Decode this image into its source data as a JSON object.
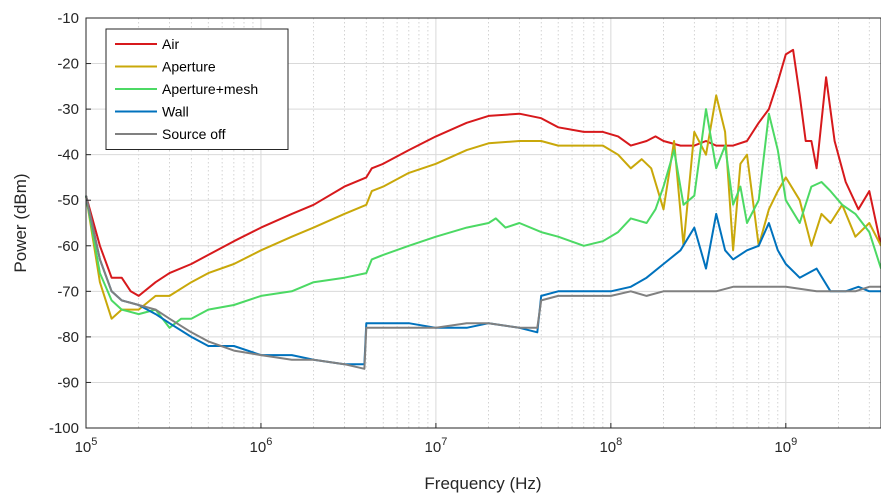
{
  "chart_data": {
    "type": "line",
    "title": "",
    "xlabel": "Frequency (Hz)",
    "ylabel": "Power (dBm)",
    "x_scale": "log",
    "xlim": [
      100000,
      3500000000
    ],
    "ylim": [
      -100,
      -10
    ],
    "grid": true,
    "legend_position": "top-left",
    "x_ticks": [
      {
        "value": 100000,
        "base": "10",
        "exp": "5"
      },
      {
        "value": 1000000,
        "base": "10",
        "exp": "6"
      },
      {
        "value": 10000000,
        "base": "10",
        "exp": "7"
      },
      {
        "value": 100000000,
        "base": "10",
        "exp": "8"
      },
      {
        "value": 1000000000,
        "base": "10",
        "exp": "9"
      }
    ],
    "y_ticks": [
      -100,
      -90,
      -80,
      -70,
      -60,
      -50,
      -40,
      -30,
      -20,
      -10
    ],
    "series": [
      {
        "name": "Air",
        "color": "#d7191c",
        "points": [
          [
            100000,
            -49
          ],
          [
            120000,
            -60
          ],
          [
            140000,
            -67
          ],
          [
            160000,
            -67
          ],
          [
            180000,
            -70
          ],
          [
            200000,
            -71
          ],
          [
            250000,
            -68
          ],
          [
            300000,
            -66
          ],
          [
            400000,
            -64
          ],
          [
            500000,
            -62
          ],
          [
            700000,
            -59
          ],
          [
            1000000,
            -56
          ],
          [
            1500000,
            -53
          ],
          [
            2000000,
            -51
          ],
          [
            3000000,
            -47
          ],
          [
            4000000,
            -45
          ],
          [
            4300000,
            -43
          ],
          [
            5000000,
            -42
          ],
          [
            7000000,
            -39
          ],
          [
            10000000,
            -36
          ],
          [
            15000000,
            -33
          ],
          [
            20000000,
            -31.5
          ],
          [
            30000000,
            -31
          ],
          [
            40000000,
            -32
          ],
          [
            50000000,
            -34
          ],
          [
            70000000,
            -35
          ],
          [
            90000000,
            -35
          ],
          [
            110000000,
            -36
          ],
          [
            130000000,
            -38
          ],
          [
            160000000,
            -37
          ],
          [
            180000000,
            -36
          ],
          [
            200000000,
            -37
          ],
          [
            250000000,
            -38
          ],
          [
            300000000,
            -38
          ],
          [
            350000000,
            -37
          ],
          [
            400000000,
            -38
          ],
          [
            500000000,
            -38
          ],
          [
            600000000,
            -37
          ],
          [
            700000000,
            -33
          ],
          [
            800000000,
            -30
          ],
          [
            900000000,
            -24
          ],
          [
            1000000000,
            -18
          ],
          [
            1100000000,
            -17
          ],
          [
            1200000000,
            -27
          ],
          [
            1300000000,
            -37
          ],
          [
            1400000000,
            -37
          ],
          [
            1500000000,
            -43
          ],
          [
            1700000000,
            -23
          ],
          [
            1900000000,
            -37
          ],
          [
            2200000000,
            -46
          ],
          [
            2600000000,
            -52
          ],
          [
            3000000000,
            -48
          ],
          [
            3500000000,
            -60
          ]
        ]
      },
      {
        "name": "Aperture",
        "color": "#c9a80a",
        "points": [
          [
            100000,
            -49
          ],
          [
            120000,
            -68
          ],
          [
            140000,
            -76
          ],
          [
            160000,
            -74
          ],
          [
            200000,
            -74
          ],
          [
            250000,
            -71
          ],
          [
            300000,
            -71
          ],
          [
            400000,
            -68
          ],
          [
            500000,
            -66
          ],
          [
            700000,
            -64
          ],
          [
            1000000,
            -61
          ],
          [
            1500000,
            -58
          ],
          [
            2000000,
            -56
          ],
          [
            3000000,
            -53
          ],
          [
            4000000,
            -51
          ],
          [
            4300000,
            -48
          ],
          [
            5000000,
            -47
          ],
          [
            7000000,
            -44
          ],
          [
            10000000,
            -42
          ],
          [
            15000000,
            -39
          ],
          [
            20000000,
            -37.5
          ],
          [
            30000000,
            -37
          ],
          [
            40000000,
            -37
          ],
          [
            50000000,
            -38
          ],
          [
            70000000,
            -38
          ],
          [
            90000000,
            -38
          ],
          [
            110000000,
            -40
          ],
          [
            130000000,
            -43
          ],
          [
            150000000,
            -41
          ],
          [
            170000000,
            -43
          ],
          [
            200000000,
            -52
          ],
          [
            230000000,
            -37
          ],
          [
            260000000,
            -60
          ],
          [
            300000000,
            -35
          ],
          [
            350000000,
            -40
          ],
          [
            400000000,
            -27
          ],
          [
            450000000,
            -35
          ],
          [
            500000000,
            -61
          ],
          [
            550000000,
            -42
          ],
          [
            600000000,
            -40
          ],
          [
            700000000,
            -60
          ],
          [
            800000000,
            -52
          ],
          [
            900000000,
            -48
          ],
          [
            1000000000,
            -45
          ],
          [
            1200000000,
            -50
          ],
          [
            1400000000,
            -60
          ],
          [
            1600000000,
            -53
          ],
          [
            1800000000,
            -55
          ],
          [
            2100000000,
            -51
          ],
          [
            2500000000,
            -58
          ],
          [
            3000000000,
            -55
          ],
          [
            3500000000,
            -60
          ]
        ]
      },
      {
        "name": "Aperture+mesh",
        "color": "#4cd964",
        "points": [
          [
            100000,
            -49
          ],
          [
            120000,
            -66
          ],
          [
            140000,
            -72
          ],
          [
            160000,
            -74
          ],
          [
            200000,
            -75
          ],
          [
            250000,
            -74
          ],
          [
            300000,
            -78
          ],
          [
            350000,
            -76
          ],
          [
            400000,
            -76
          ],
          [
            500000,
            -74
          ],
          [
            700000,
            -73
          ],
          [
            1000000,
            -71
          ],
          [
            1500000,
            -70
          ],
          [
            2000000,
            -68
          ],
          [
            3000000,
            -67
          ],
          [
            4000000,
            -66
          ],
          [
            4300000,
            -63
          ],
          [
            5000000,
            -62
          ],
          [
            7000000,
            -60
          ],
          [
            10000000,
            -58
          ],
          [
            15000000,
            -56
          ],
          [
            20000000,
            -55
          ],
          [
            22000000,
            -54
          ],
          [
            25000000,
            -56
          ],
          [
            30000000,
            -55
          ],
          [
            40000000,
            -57
          ],
          [
            50000000,
            -58
          ],
          [
            70000000,
            -60
          ],
          [
            90000000,
            -59
          ],
          [
            110000000,
            -57
          ],
          [
            130000000,
            -54
          ],
          [
            160000000,
            -55
          ],
          [
            180000000,
            -52
          ],
          [
            200000000,
            -47
          ],
          [
            230000000,
            -39
          ],
          [
            260000000,
            -51
          ],
          [
            300000000,
            -49
          ],
          [
            350000000,
            -30
          ],
          [
            400000000,
            -43
          ],
          [
            450000000,
            -38
          ],
          [
            500000000,
            -51
          ],
          [
            550000000,
            -47
          ],
          [
            600000000,
            -55
          ],
          [
            700000000,
            -50
          ],
          [
            800000000,
            -31
          ],
          [
            900000000,
            -39
          ],
          [
            1000000000,
            -50
          ],
          [
            1200000000,
            -55
          ],
          [
            1400000000,
            -47
          ],
          [
            1600000000,
            -46
          ],
          [
            1800000000,
            -48
          ],
          [
            2100000000,
            -51
          ],
          [
            2500000000,
            -53
          ],
          [
            3000000000,
            -57
          ],
          [
            3500000000,
            -65
          ]
        ]
      },
      {
        "name": "Wall",
        "color": "#0072bd",
        "points": [
          [
            100000,
            -49
          ],
          [
            120000,
            -63
          ],
          [
            140000,
            -70
          ],
          [
            160000,
            -72
          ],
          [
            200000,
            -73
          ],
          [
            250000,
            -75
          ],
          [
            300000,
            -77
          ],
          [
            400000,
            -80
          ],
          [
            500000,
            -82
          ],
          [
            700000,
            -82
          ],
          [
            1000000,
            -84
          ],
          [
            1500000,
            -84
          ],
          [
            2000000,
            -85
          ],
          [
            3000000,
            -86
          ],
          [
            3900000,
            -86
          ],
          [
            4000000,
            -77
          ],
          [
            5000000,
            -77
          ],
          [
            7000000,
            -77
          ],
          [
            10000000,
            -78
          ],
          [
            15000000,
            -78
          ],
          [
            20000000,
            -77
          ],
          [
            30000000,
            -78
          ],
          [
            38000000,
            -79
          ],
          [
            40000000,
            -71
          ],
          [
            50000000,
            -70
          ],
          [
            70000000,
            -70
          ],
          [
            100000000,
            -70
          ],
          [
            130000000,
            -69
          ],
          [
            160000000,
            -67
          ],
          [
            200000000,
            -64
          ],
          [
            250000000,
            -61
          ],
          [
            300000000,
            -56
          ],
          [
            350000000,
            -65
          ],
          [
            400000000,
            -53
          ],
          [
            450000000,
            -61
          ],
          [
            500000000,
            -63
          ],
          [
            600000000,
            -61
          ],
          [
            700000000,
            -60
          ],
          [
            800000000,
            -55
          ],
          [
            900000000,
            -61
          ],
          [
            1000000000,
            -64
          ],
          [
            1200000000,
            -67
          ],
          [
            1500000000,
            -65
          ],
          [
            1800000000,
            -70
          ],
          [
            2200000000,
            -70
          ],
          [
            2600000000,
            -69
          ],
          [
            3000000000,
            -70
          ],
          [
            3500000000,
            -70
          ]
        ]
      },
      {
        "name": "Source off",
        "color": "#808080",
        "points": [
          [
            100000,
            -49
          ],
          [
            120000,
            -63
          ],
          [
            140000,
            -70
          ],
          [
            160000,
            -72
          ],
          [
            200000,
            -73
          ],
          [
            250000,
            -74
          ],
          [
            300000,
            -76
          ],
          [
            400000,
            -79
          ],
          [
            500000,
            -81
          ],
          [
            700000,
            -83
          ],
          [
            1000000,
            -84
          ],
          [
            1500000,
            -85
          ],
          [
            2000000,
            -85
          ],
          [
            3000000,
            -86
          ],
          [
            3900000,
            -87
          ],
          [
            4000000,
            -78
          ],
          [
            5000000,
            -78
          ],
          [
            7000000,
            -78
          ],
          [
            10000000,
            -78
          ],
          [
            15000000,
            -77
          ],
          [
            20000000,
            -77
          ],
          [
            30000000,
            -78
          ],
          [
            38000000,
            -78
          ],
          [
            40000000,
            -72
          ],
          [
            50000000,
            -71
          ],
          [
            70000000,
            -71
          ],
          [
            100000000,
            -71
          ],
          [
            130000000,
            -70
          ],
          [
            160000000,
            -71
          ],
          [
            200000000,
            -70
          ],
          [
            300000000,
            -70
          ],
          [
            400000000,
            -70
          ],
          [
            500000000,
            -69
          ],
          [
            700000000,
            -69
          ],
          [
            1000000000,
            -69
          ],
          [
            1500000000,
            -70
          ],
          [
            2000000000,
            -70
          ],
          [
            2500000000,
            -70
          ],
          [
            3000000000,
            -69
          ],
          [
            3500000000,
            -69
          ]
        ]
      }
    ]
  }
}
